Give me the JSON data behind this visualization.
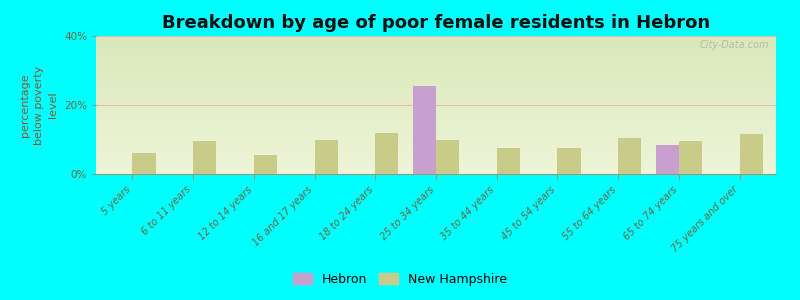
{
  "title": "Breakdown by age of poor female residents in Hebron",
  "ylabel": "percentage\nbelow poverty\nlevel",
  "background_color": "#00ffff",
  "plot_bg_color_top": "#d8e8b8",
  "plot_bg_color_bottom": "#eef4d8",
  "categories": [
    "5 years",
    "6 to 11 years",
    "12 to 14 years",
    "16 and 17 years",
    "18 to 24 years",
    "25 to 34 years",
    "35 to 44 years",
    "45 to 54 years",
    "55 to 64 years",
    "65 to 74 years",
    "75 years and over"
  ],
  "hebron_values": [
    0,
    0,
    0,
    0,
    0,
    25.5,
    0,
    0,
    0,
    8.5,
    0
  ],
  "nh_values": [
    6.0,
    9.5,
    5.5,
    10.0,
    12.0,
    10.0,
    7.5,
    7.5,
    10.5,
    9.5,
    11.5
  ],
  "hebron_color": "#c8a0d0",
  "nh_color": "#c8cc88",
  "ylim": [
    0,
    40
  ],
  "yticks": [
    0,
    20,
    40
  ],
  "ytick_labels": [
    "0%",
    "20%",
    "40%"
  ],
  "grid_color": "#e8b8b8",
  "bar_width": 0.38,
  "title_fontsize": 13,
  "axis_label_fontsize": 8,
  "tick_fontsize": 7,
  "legend_fontsize": 9,
  "watermark": "City-Data.com"
}
